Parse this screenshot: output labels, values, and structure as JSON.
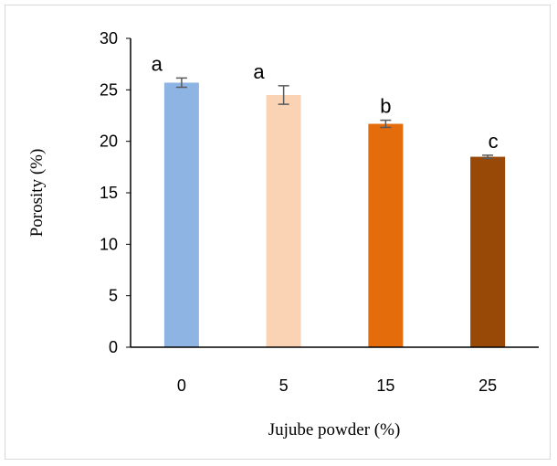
{
  "chart_data": {
    "type": "bar",
    "categories": [
      "0",
      "5",
      "15",
      "25"
    ],
    "values": [
      25.7,
      24.5,
      21.7,
      18.5
    ],
    "errors": [
      0.45,
      0.9,
      0.35,
      0.15
    ],
    "significance_labels": [
      "a",
      "a",
      "b",
      "c"
    ],
    "colors": [
      "#8eb4e3",
      "#fad3b4",
      "#e46c0a",
      "#984807"
    ],
    "error_bar_color": "#595959",
    "xlabel": "Jujube powder (%)",
    "ylabel": "Porosity (%)",
    "ylim": [
      0,
      30
    ],
    "yticks": [
      "0",
      "5",
      "10",
      "15",
      "20",
      "25",
      "30"
    ],
    "grid": false,
    "legend": "none"
  }
}
